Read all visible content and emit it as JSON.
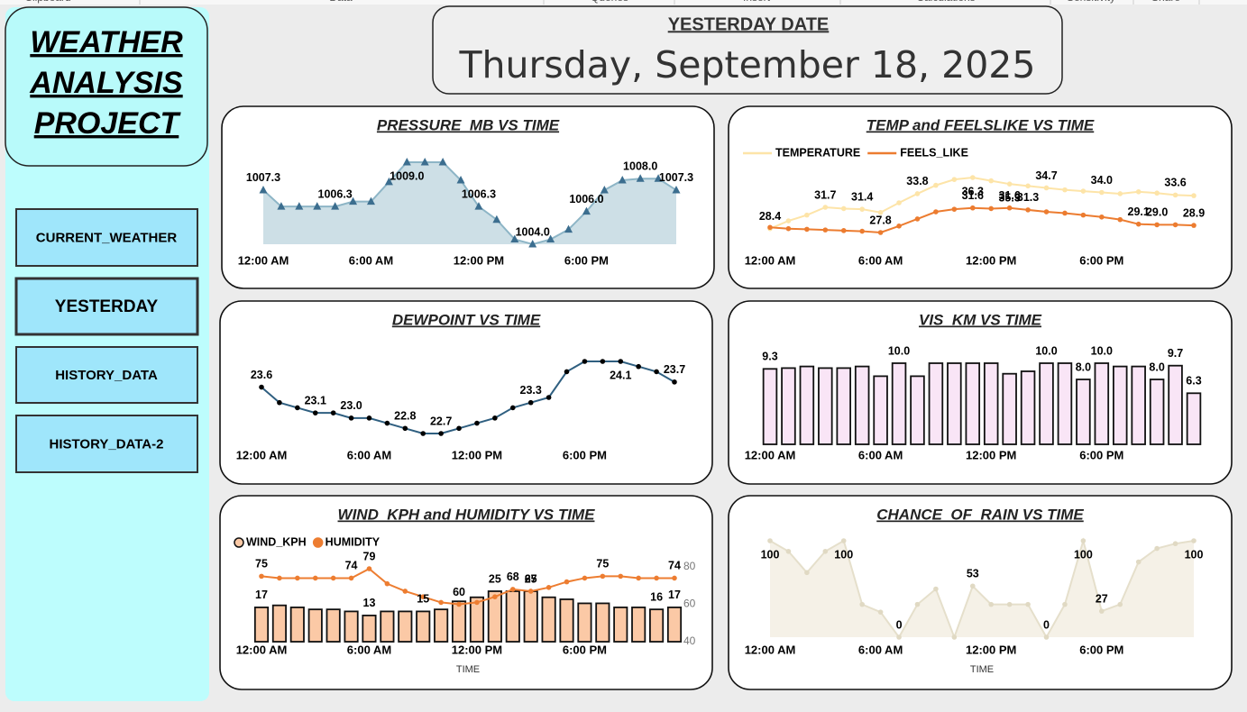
{
  "ribbon": [
    "Clipboard",
    "Data",
    "Queries",
    "Insert",
    "Calculations",
    "Sensitivity",
    "Share"
  ],
  "sidebar": {
    "title": [
      "WEATHER",
      "ANALYSIS",
      "PROJECT"
    ],
    "nav": [
      "CURRENT_WEATHER",
      "YESTERDAY",
      "HISTORY_DATA",
      "HISTORY_DATA-2"
    ]
  },
  "header": {
    "label": "YESTERDAY DATE",
    "date": "Thursday, September 18, 2025"
  },
  "chart_data": [
    {
      "type": "area",
      "title": "PRESSURE_MB VS TIME",
      "categories": [
        "12:00 AM",
        null,
        null,
        null,
        null,
        null,
        "6:00 AM",
        null,
        null,
        null,
        null,
        null,
        "12:00 PM",
        null,
        null,
        null,
        null,
        null,
        "6:00 PM",
        null,
        null,
        null,
        null,
        null
      ],
      "values": [
        1007.3,
        1006.3,
        1006.3,
        1006.3,
        1006.3,
        1006.6,
        1006.6,
        1007.8,
        1009.0,
        1009.0,
        1009.0,
        1007.9,
        1006.3,
        1005.5,
        1004.3,
        1004.0,
        1004.3,
        1004.9,
        1006.0,
        1007.3,
        1007.9,
        1008.0,
        1008.0,
        1007.3
      ],
      "value_labels": [
        "1007.3",
        null,
        null,
        null,
        "1006.3",
        null,
        null,
        null,
        "1009.0",
        null,
        null,
        null,
        "1006.3",
        null,
        null,
        "1004.0",
        null,
        null,
        "1006.0",
        null,
        null,
        "1008.0",
        null,
        "1007.3"
      ],
      "color": "#3c6e8f",
      "line_color": "#8db5c6",
      "fill_color": "#cddfe6",
      "marker": "triangle"
    },
    {
      "type": "line",
      "title": "TEMP and FEELSLIKE VS TIME",
      "legend": "top-left",
      "categories": [
        "12:00 AM",
        null,
        null,
        null,
        null,
        null,
        "6:00 AM",
        null,
        null,
        null,
        null,
        null,
        "12:00 PM",
        null,
        null,
        null,
        null,
        null,
        "6:00 PM",
        null,
        null,
        null,
        null,
        null
      ],
      "series": [
        {
          "name": "TEMPERATURE",
          "color": "#fde4a8",
          "marker": "circle",
          "values": [
            28.4,
            29.6,
            30.5,
            31.7,
            31.5,
            31.4,
            30.9,
            32.4,
            33.8,
            35.1,
            36.0,
            36.3,
            35.8,
            35.3,
            35.0,
            34.7,
            34.4,
            34.2,
            34.0,
            33.8,
            34.1,
            33.9,
            33.6,
            33.5
          ],
          "value_labels": [
            "28.4",
            null,
            null,
            "31.7",
            null,
            "31.4",
            null,
            null,
            "33.8",
            null,
            null,
            "36.3",
            null,
            "35.3",
            null,
            "34.7",
            null,
            null,
            "34.0",
            null,
            null,
            null,
            "33.6",
            null
          ]
        },
        {
          "name": "FEELS_LIKE",
          "color": "#ec7c30",
          "marker": "circle",
          "values": [
            28.6,
            28.4,
            28.3,
            28.2,
            28.1,
            28.0,
            27.8,
            28.8,
            29.9,
            31.0,
            31.4,
            31.6,
            31.5,
            31.6,
            31.3,
            31.0,
            30.8,
            30.5,
            30.2,
            29.8,
            29.1,
            29.0,
            29.0,
            28.9
          ],
          "value_labels": [
            null,
            null,
            null,
            null,
            null,
            null,
            "27.8",
            null,
            null,
            null,
            null,
            "31.6",
            null,
            "31.6",
            "31.3",
            null,
            null,
            null,
            null,
            null,
            "29.1",
            "29.0",
            null,
            "28.9"
          ]
        }
      ]
    },
    {
      "type": "line",
      "title": "DEWPOINT VS TIME",
      "categories": [
        "12:00 AM",
        null,
        null,
        null,
        null,
        null,
        "6:00 AM",
        null,
        null,
        null,
        null,
        null,
        "12:00 PM",
        null,
        null,
        null,
        null,
        null,
        "6:00 PM",
        null,
        null,
        null,
        null,
        null
      ],
      "values": [
        23.6,
        23.3,
        23.2,
        23.1,
        23.1,
        23.0,
        23.0,
        22.9,
        22.8,
        22.7,
        22.7,
        22.8,
        22.9,
        23.0,
        23.2,
        23.3,
        23.4,
        23.9,
        24.1,
        24.1,
        24.1,
        24.0,
        23.9,
        23.7
      ],
      "value_labels": [
        "23.6",
        null,
        null,
        "23.1",
        null,
        "23.0",
        null,
        null,
        "22.8",
        null,
        "22.7",
        null,
        null,
        null,
        null,
        "23.3",
        null,
        null,
        null,
        null,
        "24.1",
        null,
        null,
        "23.7"
      ],
      "color": "#2f5f80",
      "marker": "circle",
      "marker_color": "#000000"
    },
    {
      "type": "bar",
      "title": "VIS_KM VS TIME",
      "categories": [
        "12:00 AM",
        null,
        null,
        null,
        null,
        null,
        "6:00 AM",
        null,
        null,
        null,
        null,
        null,
        "12:00 PM",
        null,
        null,
        null,
        null,
        null,
        "6:00 PM",
        null,
        null,
        null,
        null,
        null
      ],
      "values": [
        9.3,
        9.4,
        9.6,
        9.4,
        9.4,
        9.6,
        8.4,
        10.0,
        8.4,
        10.0,
        10.0,
        10.0,
        10.0,
        8.7,
        9.0,
        10.0,
        10.0,
        8.0,
        10.0,
        9.6,
        9.6,
        8.0,
        9.7,
        6.3
      ],
      "value_labels": [
        "9.3",
        null,
        null,
        null,
        null,
        null,
        null,
        "10.0",
        null,
        null,
        null,
        null,
        null,
        null,
        null,
        "10.0",
        null,
        "8.0",
        "10.0",
        null,
        null,
        "8.0",
        "9.7",
        "6.3"
      ],
      "color": "#f9e5f6"
    },
    {
      "type": "combo",
      "title": "WIND_KPH and HUMIDITY VS TIME",
      "x_label": "TIME",
      "legend": "top-left",
      "categories": [
        "12:00 AM",
        null,
        null,
        null,
        null,
        null,
        "6:00 AM",
        null,
        null,
        null,
        null,
        null,
        "12:00 PM",
        null,
        null,
        null,
        null,
        null,
        "6:00 PM",
        null,
        null,
        null,
        null,
        null
      ],
      "y2lim": [
        40,
        80
      ],
      "y2ticks": [
        40,
        60,
        80
      ],
      "series": [
        {
          "name": "WIND_KPH",
          "type": "bar",
          "color": "#fbc9a6",
          "values": [
            17,
            18,
            17,
            16,
            16,
            15,
            13,
            15,
            15,
            15,
            16,
            20,
            22,
            25,
            25,
            25,
            22,
            21,
            19,
            19,
            17,
            17,
            16,
            17
          ],
          "value_labels": [
            "17",
            null,
            null,
            null,
            null,
            null,
            "13",
            null,
            null,
            "15",
            null,
            null,
            null,
            "25",
            null,
            "25",
            null,
            null,
            null,
            null,
            null,
            null,
            "16",
            "17"
          ]
        },
        {
          "name": "HUMIDITY",
          "type": "line",
          "axis": "y2",
          "color": "#ed7d31",
          "marker": "circle",
          "values": [
            75,
            74,
            74,
            74,
            74,
            74,
            79,
            71,
            67,
            64,
            61,
            60,
            61,
            64,
            68,
            67,
            69,
            72,
            74,
            75,
            75,
            74,
            74,
            74
          ],
          "value_labels": [
            "75",
            null,
            null,
            null,
            null,
            "74",
            "79",
            null,
            null,
            null,
            null,
            "60",
            null,
            null,
            "68",
            "67",
            null,
            null,
            null,
            "75",
            null,
            null,
            null,
            "74"
          ]
        }
      ]
    },
    {
      "type": "area",
      "title": "CHANCE_OF_RAIN VS TIME",
      "x_label": "TIME",
      "categories": [
        "12:00 AM",
        null,
        null,
        null,
        null,
        null,
        "6:00 AM",
        null,
        null,
        null,
        null,
        null,
        "12:00 PM",
        null,
        null,
        null,
        null,
        null,
        "6:00 PM",
        null,
        null,
        null,
        null,
        null
      ],
      "values": [
        100,
        89,
        67,
        89,
        100,
        34,
        26,
        0,
        34,
        50,
        0,
        53,
        34,
        34,
        34,
        0,
        34,
        100,
        27,
        34,
        78,
        92,
        97,
        100
      ],
      "value_labels": [
        "100",
        null,
        null,
        null,
        "100",
        null,
        null,
        "0",
        null,
        null,
        null,
        "53",
        null,
        null,
        null,
        "0",
        null,
        "100",
        "27",
        null,
        null,
        null,
        null,
        "100"
      ],
      "color": "#e0d9c3",
      "line_color": "#e5dfcb",
      "fill_color": "#f5f1e7",
      "marker": "circle"
    }
  ]
}
